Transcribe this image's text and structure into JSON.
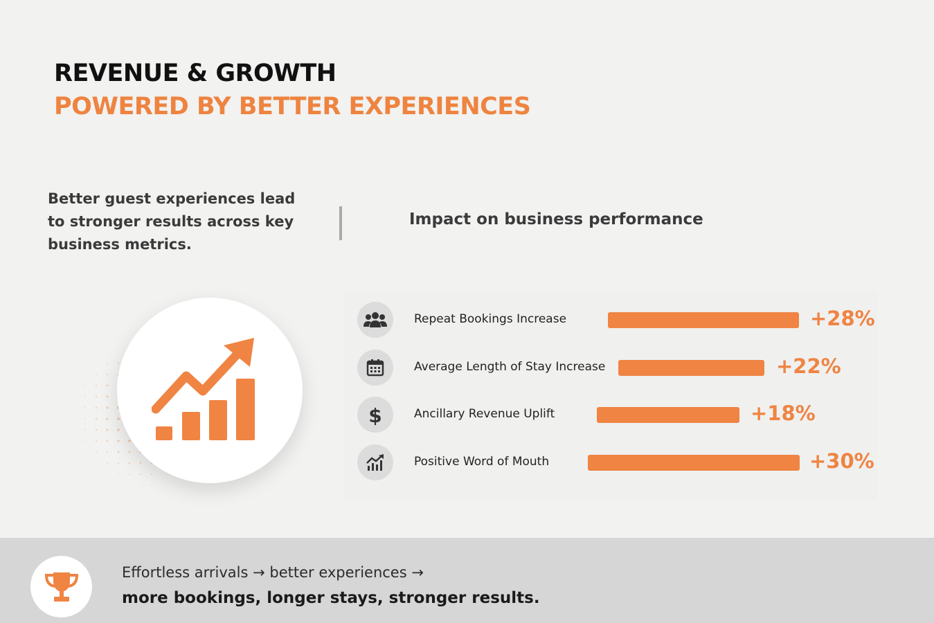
{
  "header": {
    "title_line1": "REVENUE & GROWTH",
    "title_line2": "POWERED BY BETTER EXPERIENCES"
  },
  "intro": {
    "text": "Better guest experiences lead to stronger results across key business metrics."
  },
  "impact": {
    "heading": "Impact on business performance"
  },
  "metrics": [
    {
      "icon": "people-group-icon",
      "label": "Repeat Bookings Increase",
      "value": "+28%",
      "percent": 28
    },
    {
      "icon": "calendar-icon",
      "label": "Average Length of Stay Increase",
      "value": "+22%",
      "percent": 22
    },
    {
      "icon": "dollar-icon",
      "label": "Ancillary Revenue Uplift",
      "value": "+18%",
      "percent": 18
    },
    {
      "icon": "growth-chart-icon",
      "label": "Positive Word of Mouth",
      "value": "+30%",
      "percent": 30
    }
  ],
  "footer": {
    "icon": "trophy-icon",
    "line1": "Effortless arrivals → better experiences →",
    "line2": "more bookings, longer stays, stronger results."
  },
  "colors": {
    "accent": "#ef8443",
    "title_dark": "#111111",
    "text_gray": "#3a3a3a",
    "footer_bg": "#d6d6d6"
  }
}
